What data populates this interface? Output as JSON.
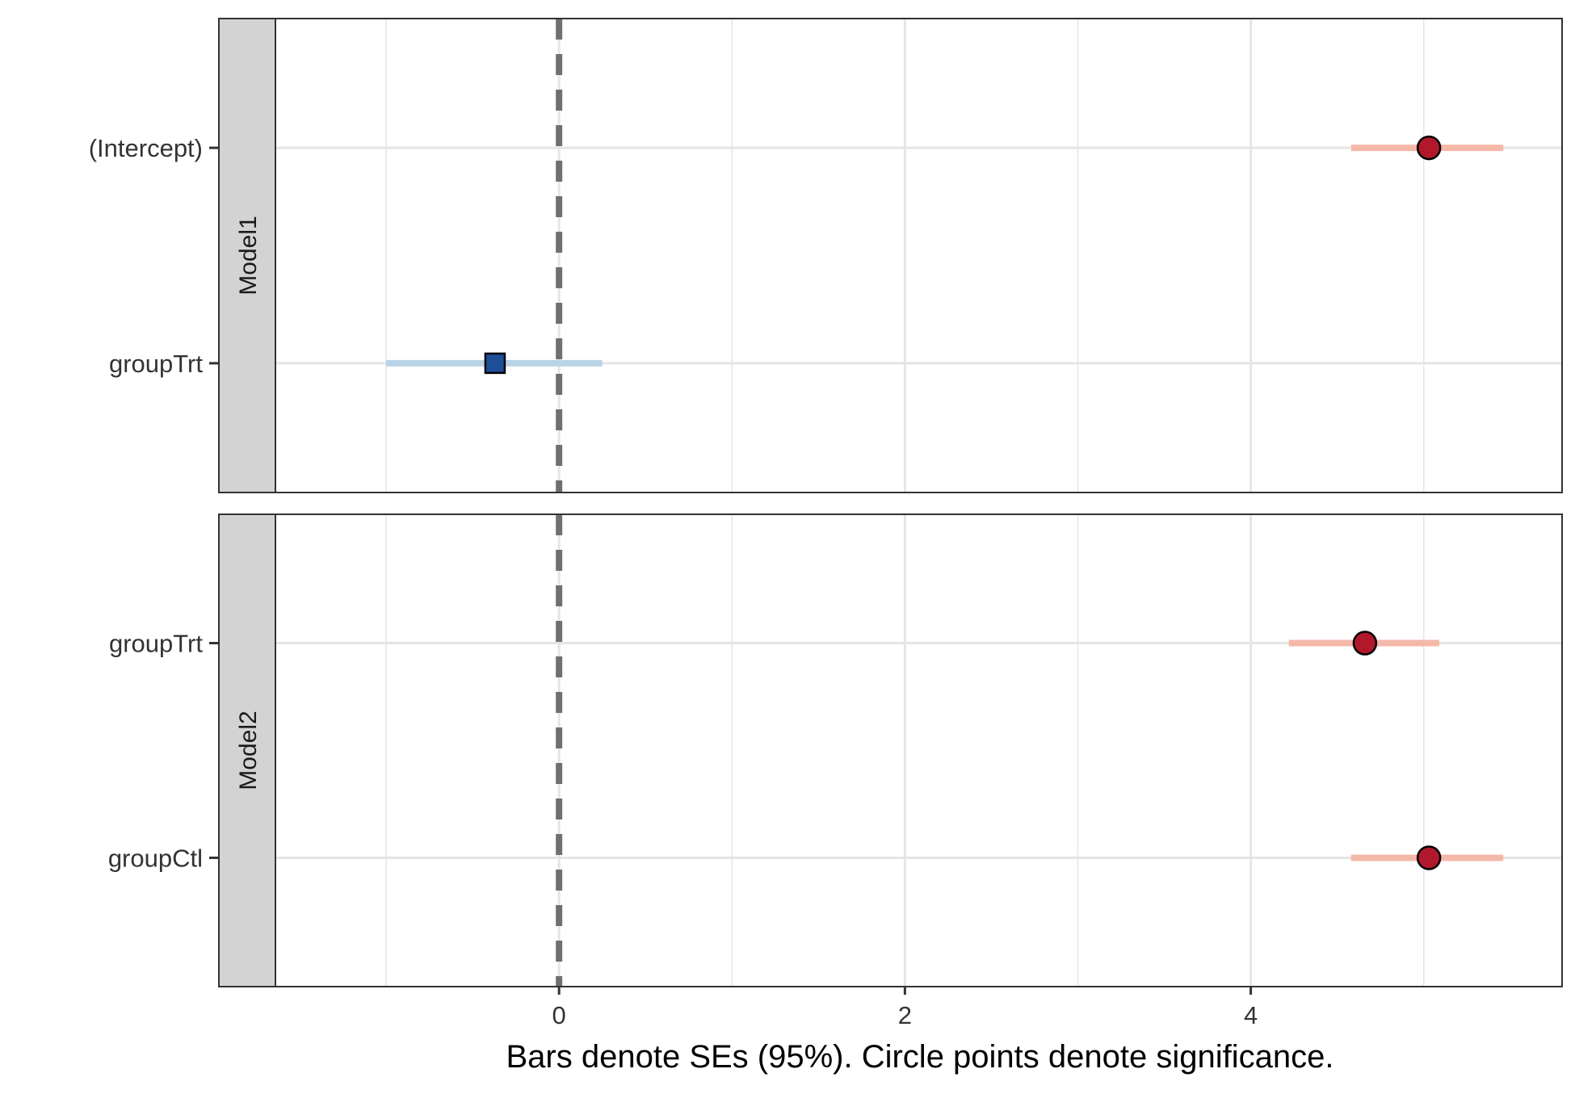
{
  "chart_data": {
    "type": "forest",
    "xlabel": "Bars denote SEs (95%). Circle points denote significance.",
    "xlim": [
      -1.64,
      5.8
    ],
    "x_ticks": [
      0,
      2,
      4
    ],
    "x_minor_grid": [
      -1,
      1,
      3,
      5
    ],
    "reference_line": 0,
    "grid": true,
    "colors": {
      "significant_point": "#b2182b",
      "significant_bar": "#f4b8a9",
      "nonsignificant_point": "#1f4e99",
      "nonsignificant_bar": "#b9d3e6",
      "strip_background": "#d3d3d3",
      "reference_line": "#707070",
      "grid": "#e5e5e5"
    },
    "panels": [
      {
        "label": "Model1",
        "terms": [
          {
            "term": "(Intercept)",
            "estimate": 5.03,
            "lower": 4.58,
            "upper": 5.46,
            "significant": true,
            "shape": "circle"
          },
          {
            "term": "groupTrt",
            "estimate": -0.37,
            "lower": -1.0,
            "upper": 0.25,
            "significant": false,
            "shape": "square"
          }
        ]
      },
      {
        "label": "Model2",
        "terms": [
          {
            "term": "groupTrt",
            "estimate": 4.66,
            "lower": 4.22,
            "upper": 5.09,
            "significant": true,
            "shape": "circle"
          },
          {
            "term": "groupCtl",
            "estimate": 5.03,
            "lower": 4.58,
            "upper": 5.46,
            "significant": true,
            "shape": "circle"
          }
        ]
      }
    ]
  }
}
